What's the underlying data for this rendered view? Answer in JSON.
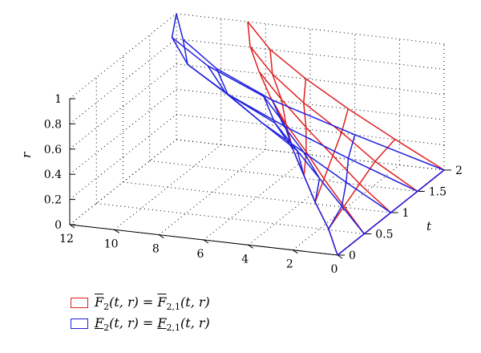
{
  "chart_data": {
    "type": "surface3d",
    "xlabel": "t",
    "ylabel": "",
    "zlabel": "r",
    "t_ticks": [
      "0",
      "0.5",
      "1",
      "1.5",
      "2"
    ],
    "x_ticks": [
      "12",
      "10",
      "8",
      "6",
      "4",
      "2",
      "0"
    ],
    "r_ticks": [
      "0",
      "0.2",
      "0.4",
      "0.6",
      "0.8",
      "1"
    ],
    "t_range": [
      0,
      2
    ],
    "x_range": [
      0,
      12
    ],
    "r_range": [
      0,
      1
    ],
    "grid": true,
    "legend_position": "bottom-left",
    "r_levels": [
      0,
      0.2,
      0.4,
      0.6,
      0.8,
      1.0
    ],
    "t_levels": [
      0,
      0.5,
      1.0,
      1.5,
      2.0
    ],
    "series": [
      {
        "name": "F̄₂(t, r) = F̄₂,₁(t, r)",
        "color": "#e02020",
        "t_values": [
          0,
          0.5,
          1.0,
          1.5,
          2.0
        ],
        "r_values": [
          0,
          0.2,
          0.4,
          0.6,
          0.8,
          1.0
        ],
        "values": [
          [
            0.0,
            0.4,
            1.0,
            1.5,
            2.0,
            2.4
          ],
          [
            0.0,
            0.9,
            1.8,
            2.6,
            3.5,
            4.2
          ],
          [
            0.0,
            1.4,
            2.6,
            3.8,
            4.9,
            5.9
          ],
          [
            0.0,
            1.9,
            3.4,
            5.1,
            6.5,
            7.5
          ],
          [
            0.0,
            2.2,
            4.3,
            6.2,
            7.8,
            8.8
          ]
        ]
      },
      {
        "name": "F₂(t, r) = F₂,₁(t, r)",
        "color": "#2020e0",
        "t_values": [
          0,
          0.5,
          1.0,
          1.5,
          2.0
        ],
        "r_values": [
          0,
          0.2,
          0.4,
          0.6,
          0.8,
          1.0
        ],
        "values": [
          [
            0.0,
            0.4,
            1.0,
            1.5,
            2.0,
            2.4
          ],
          [
            0.0,
            1.0,
            2.0,
            3.0,
            4.0,
            4.5
          ],
          [
            0.0,
            2.0,
            3.9,
            5.8,
            7.4,
            8.2
          ],
          [
            0.0,
            3.1,
            6.0,
            8.5,
            10.3,
            11.0
          ],
          [
            0.0,
            4.0,
            7.7,
            10.2,
            11.7,
            12.0
          ]
        ]
      }
    ]
  },
  "legend": {
    "items": [
      {
        "color": "#e02020",
        "lhs_main": "F",
        "lhs_sub": "2",
        "lhs_args": "(t, r)",
        "eq": " = ",
        "rhs_main": "F",
        "rhs_sub": "2,1",
        "rhs_args": "(t, r)",
        "mark": "over"
      },
      {
        "color": "#2020e0",
        "lhs_main": "F",
        "lhs_sub": "2",
        "lhs_args": "(t, r)",
        "eq": " = ",
        "rhs_main": "F",
        "rhs_sub": "2,1",
        "rhs_args": "(t, r)",
        "mark": "under"
      }
    ]
  }
}
